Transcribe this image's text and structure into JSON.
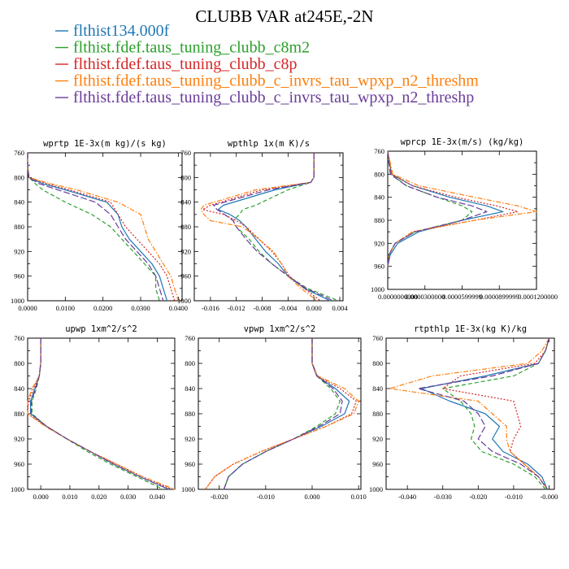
{
  "figure": {
    "title": "CLUBB VAR at245E,-2N"
  },
  "legend": [
    {
      "name": "flthist134.000f",
      "color": "#1f77b4",
      "dash": "solid"
    },
    {
      "name": "flthist.fdef.taus_tuning_clubb_c8m2",
      "color": "#2ca02c",
      "dash": "dash"
    },
    {
      "name": "flthist.fdef.taus_tuning_clubb_c8p",
      "color": "#d62728",
      "dash": "dot"
    },
    {
      "name": "flthist.fdef.taus_tuning_clubb_c_invrs_tau_wpxp_n2_threshm",
      "color": "#ff7f0e",
      "dash": "dashdot"
    },
    {
      "name": "flthist.fdef.taus_tuning_clubb_c_invrs_tau_wpxp_n2_threshp",
      "color": "#6a3d9a",
      "dash": "longdash"
    }
  ],
  "chart_data": [
    {
      "type": "line",
      "title": "wprtp  1E-3x(m kg)/(s kg)",
      "xlim": [
        0,
        0.041
      ],
      "ylim": [
        760,
        1000
      ],
      "xticks": [
        0,
        0.01,
        0.02,
        0.03,
        0.04
      ],
      "xtick_labels": [
        "0.0000",
        "0.0100",
        "0.0200",
        "0.0300",
        "0.0400"
      ],
      "yticks": [
        760,
        800,
        840,
        880,
        920,
        960,
        1000
      ],
      "ytick_labels": [
        "760",
        "800",
        "840",
        "880",
        "920",
        "960",
        "1000"
      ],
      "y": [
        760,
        780,
        800,
        810,
        820,
        840,
        860,
        880,
        900,
        920,
        940,
        960,
        980,
        1000
      ],
      "series": [
        {
          "values": [
            0,
            0,
            0.0003,
            0.004,
            0.01,
            0.021,
            0.024,
            0.025,
            0.027,
            0.03,
            0.033,
            0.035,
            0.036,
            0.037
          ]
        },
        {
          "values": [
            0,
            0,
            0.0004,
            0.002,
            0.004,
            0.01,
            0.017,
            0.022,
            0.025,
            0.028,
            0.031,
            0.034,
            0.034,
            0.035
          ]
        },
        {
          "values": [
            0,
            0,
            0.0003,
            0.005,
            0.011,
            0.022,
            0.024,
            0.026,
            0.029,
            0.032,
            0.035,
            0.037,
            0.038,
            0.039
          ]
        },
        {
          "values": [
            0,
            0,
            0.0003,
            0.006,
            0.013,
            0.024,
            0.03,
            0.031,
            0.032,
            0.034,
            0.036,
            0.038,
            0.039,
            0.04
          ]
        },
        {
          "values": [
            0,
            0,
            0.0003,
            0.003,
            0.008,
            0.018,
            0.022,
            0.024,
            0.026,
            0.029,
            0.032,
            0.034,
            0.035,
            0.036
          ]
        }
      ]
    },
    {
      "type": "line",
      "title": "wpthlp  1x(m K)/s",
      "xlim": [
        -0.0185,
        0.0045
      ],
      "ylim": [
        760,
        1000
      ],
      "xticks": [
        -0.016,
        -0.012,
        -0.008,
        -0.004,
        0,
        0.004
      ],
      "xtick_labels": [
        "-0.016",
        "-0.012",
        "-0.008",
        "-0.004",
        "0.000",
        "0.004"
      ],
      "yticks": [
        760,
        800,
        840,
        880,
        920,
        960,
        1000
      ],
      "ytick_labels": [
        "760",
        "800",
        "840",
        "880",
        "920",
        "960",
        "1000"
      ],
      "y": [
        760,
        800,
        808,
        820,
        845,
        852,
        860,
        870,
        880,
        900,
        920,
        940,
        960,
        980,
        1000
      ],
      "series": [
        {
          "values": [
            0,
            0,
            -0.0005,
            -0.006,
            -0.014,
            -0.0148,
            -0.013,
            -0.0115,
            -0.0105,
            -0.009,
            -0.0075,
            -0.0055,
            -0.004,
            -0.0015,
            0.0025
          ]
        },
        {
          "values": [
            0,
            0,
            -0.0005,
            -0.004,
            -0.009,
            -0.011,
            -0.0115,
            -0.0125,
            -0.012,
            -0.01,
            -0.0085,
            -0.0065,
            -0.004,
            -0.001,
            0.0038
          ]
        },
        {
          "values": [
            0,
            0,
            -0.0005,
            -0.008,
            -0.016,
            -0.0172,
            -0.014,
            -0.012,
            -0.0105,
            -0.0085,
            -0.0065,
            -0.005,
            -0.0038,
            -0.0015,
            0.001
          ]
        },
        {
          "values": [
            0,
            0,
            -0.0005,
            -0.009,
            -0.017,
            -0.0175,
            -0.017,
            -0.016,
            -0.011,
            -0.0085,
            -0.0063,
            -0.005,
            -0.004,
            -0.002,
            0.0005
          ]
        },
        {
          "values": [
            0,
            0,
            -0.0005,
            -0.007,
            -0.0155,
            -0.015,
            -0.0138,
            -0.0125,
            -0.012,
            -0.0105,
            -0.0088,
            -0.0065,
            -0.004,
            -0.0012,
            0.003
          ]
        }
      ]
    },
    {
      "type": "line",
      "title": "wprcp  1E-3x(m/s) (kg/kg)",
      "xlim": [
        0,
        0.00012
      ],
      "ylim": [
        760,
        1000
      ],
      "xticks": [
        0,
        3e-05,
        6e-05,
        9e-05,
        0.00012
      ],
      "xtick_labels": [
        "0.0000000000",
        "0.0000300000",
        "0.0000599999",
        "0.0000899999",
        "0.0001200000"
      ],
      "yticks": [
        760,
        800,
        840,
        880,
        920,
        960,
        1000
      ],
      "ytick_labels": [
        "760",
        "800",
        "840",
        "880",
        "920",
        "960",
        "1000"
      ],
      "y": [
        760,
        800,
        820,
        840,
        855,
        865,
        880,
        900,
        920,
        940,
        960
      ],
      "series": [
        {
          "values": [
            0,
            3e-06,
            2e-05,
            5e-05,
            8e-05,
            9.3e-05,
            6e-05,
            2.5e-05,
            8e-06,
            2e-06,
            0
          ]
        },
        {
          "values": [
            0,
            3e-06,
            1.5e-05,
            4e-05,
            6e-05,
            6.8e-05,
            6e-05,
            2.2e-05,
            6e-06,
            1e-06,
            0
          ]
        },
        {
          "values": [
            0,
            3e-06,
            2e-05,
            5.5e-05,
            8.8e-05,
            0.000105,
            7e-05,
            2e-05,
            6e-06,
            1e-06,
            0
          ]
        },
        {
          "values": [
            0,
            4e-06,
            2.5e-05,
            7e-05,
            0.000105,
            0.00012,
            7e-05,
            2e-05,
            6e-06,
            1e-06,
            0
          ]
        },
        {
          "values": [
            0,
            2e-06,
            1.5e-05,
            4e-05,
            6.8e-05,
            8e-05,
            6e-05,
            2.2e-05,
            6e-06,
            1e-06,
            0
          ]
        }
      ]
    },
    {
      "type": "line",
      "title": "upwp  1xm^2/s^2",
      "xlim": [
        -0.0045,
        0.046
      ],
      "ylim": [
        760,
        1000
      ],
      "xticks": [
        0,
        0.01,
        0.02,
        0.03,
        0.04
      ],
      "xtick_labels": [
        "0.000",
        "0.010",
        "0.020",
        "0.030",
        "0.040"
      ],
      "yticks": [
        760,
        800,
        840,
        880,
        920,
        960,
        1000
      ],
      "ytick_labels": [
        "760",
        "800",
        "840",
        "880",
        "920",
        "960",
        "1000"
      ],
      "y": [
        760,
        800,
        820,
        840,
        860,
        880,
        900,
        920,
        940,
        960,
        980,
        1000
      ],
      "series": [
        {
          "values": [
            0,
            0,
            -0.0005,
            -0.002,
            -0.0035,
            -0.0035,
            0.002,
            0.009,
            0.017,
            0.025,
            0.034,
            0.044
          ]
        },
        {
          "values": [
            0,
            0,
            -0.0005,
            -0.0015,
            -0.003,
            -0.003,
            0.002,
            0.009,
            0.016,
            0.024,
            0.033,
            0.042
          ]
        },
        {
          "values": [
            0,
            0,
            -0.0005,
            -0.0025,
            -0.0042,
            -0.0045,
            0.002,
            0.009,
            0.017,
            0.026,
            0.035,
            0.045
          ]
        },
        {
          "values": [
            0,
            0,
            -0.0005,
            -0.003,
            -0.0045,
            -0.0045,
            0.0015,
            0.009,
            0.017,
            0.026,
            0.035,
            0.046
          ]
        },
        {
          "values": [
            0,
            0,
            -0.0005,
            -0.0018,
            -0.0032,
            -0.0033,
            0.002,
            0.009,
            0.017,
            0.025,
            0.034,
            0.044
          ]
        }
      ]
    },
    {
      "type": "line",
      "title": "vpwp  1xm^2/s^2",
      "xlim": [
        -0.0245,
        0.0105
      ],
      "ylim": [
        760,
        1000
      ],
      "xticks": [
        -0.02,
        -0.01,
        0,
        0.01
      ],
      "xtick_labels": [
        "-0.020",
        "-0.010",
        "0.000",
        "0.010"
      ],
      "yticks": [
        760,
        800,
        840,
        880,
        920,
        960,
        1000
      ],
      "ytick_labels": [
        "760",
        "800",
        "840",
        "880",
        "920",
        "960",
        "1000"
      ],
      "y": [
        760,
        800,
        820,
        840,
        860,
        880,
        900,
        920,
        940,
        960,
        980,
        1000
      ],
      "series": [
        {
          "values": [
            0,
            0,
            0.001,
            0.005,
            0.008,
            0.007,
            0.002,
            -0.004,
            -0.01,
            -0.015,
            -0.018,
            -0.019
          ]
        },
        {
          "values": [
            0,
            0,
            0.001,
            0.004,
            0.006,
            0.005,
            0.001,
            -0.004,
            -0.01,
            -0.015,
            -0.018,
            -0.019
          ]
        },
        {
          "values": [
            0,
            0,
            0.001,
            0.006,
            0.0095,
            0.0085,
            0.003,
            -0.004,
            -0.011,
            -0.017,
            -0.021,
            -0.023
          ]
        },
        {
          "values": [
            0,
            0,
            0.0012,
            0.007,
            0.01,
            0.009,
            0.003,
            -0.004,
            -0.011,
            -0.017,
            -0.021,
            -0.023
          ]
        },
        {
          "values": [
            0,
            0,
            0.001,
            0.0045,
            0.0065,
            0.006,
            0.0015,
            -0.004,
            -0.01,
            -0.015,
            -0.018,
            -0.019
          ]
        }
      ]
    },
    {
      "type": "line",
      "title": "rtpthlp  1E-3x(kg K)/kg",
      "xlim": [
        -0.046,
        0.0015
      ],
      "ylim": [
        760,
        1000
      ],
      "xticks": [
        -0.04,
        -0.03,
        -0.02,
        -0.01,
        0
      ],
      "xtick_labels": [
        "-0.040",
        "-0.030",
        "-0.020",
        "-0.010",
        "-0.000"
      ],
      "yticks": [
        760,
        800,
        840,
        880,
        920,
        960,
        1000
      ],
      "ytick_labels": [
        "760",
        "800",
        "840",
        "880",
        "920",
        "960",
        "1000"
      ],
      "y": [
        760,
        780,
        800,
        820,
        840,
        860,
        880,
        900,
        920,
        940,
        960,
        980,
        1000
      ],
      "series": [
        {
          "values": [
            0,
            -0.001,
            -0.003,
            -0.018,
            -0.036,
            -0.028,
            -0.018,
            -0.014,
            -0.016,
            -0.013,
            -0.006,
            -0.002,
            -0.0005
          ]
        },
        {
          "values": [
            0,
            -0.001,
            -0.003,
            -0.01,
            -0.03,
            -0.025,
            -0.022,
            -0.021,
            -0.022,
            -0.019,
            -0.01,
            -0.004,
            -0.001
          ]
        },
        {
          "values": [
            0,
            -0.001,
            -0.004,
            -0.025,
            -0.03,
            -0.01,
            -0.009,
            -0.008,
            -0.01,
            -0.011,
            -0.007,
            -0.003,
            -0.0005
          ]
        },
        {
          "values": [
            0,
            -0.002,
            -0.006,
            -0.033,
            -0.045,
            -0.02,
            -0.016,
            -0.012,
            -0.012,
            -0.011,
            -0.007,
            -0.003,
            -0.0005
          ]
        },
        {
          "values": [
            0,
            -0.001,
            -0.003,
            -0.016,
            -0.037,
            -0.024,
            -0.02,
            -0.018,
            -0.02,
            -0.016,
            -0.008,
            -0.003,
            -0.0005
          ]
        }
      ]
    }
  ]
}
